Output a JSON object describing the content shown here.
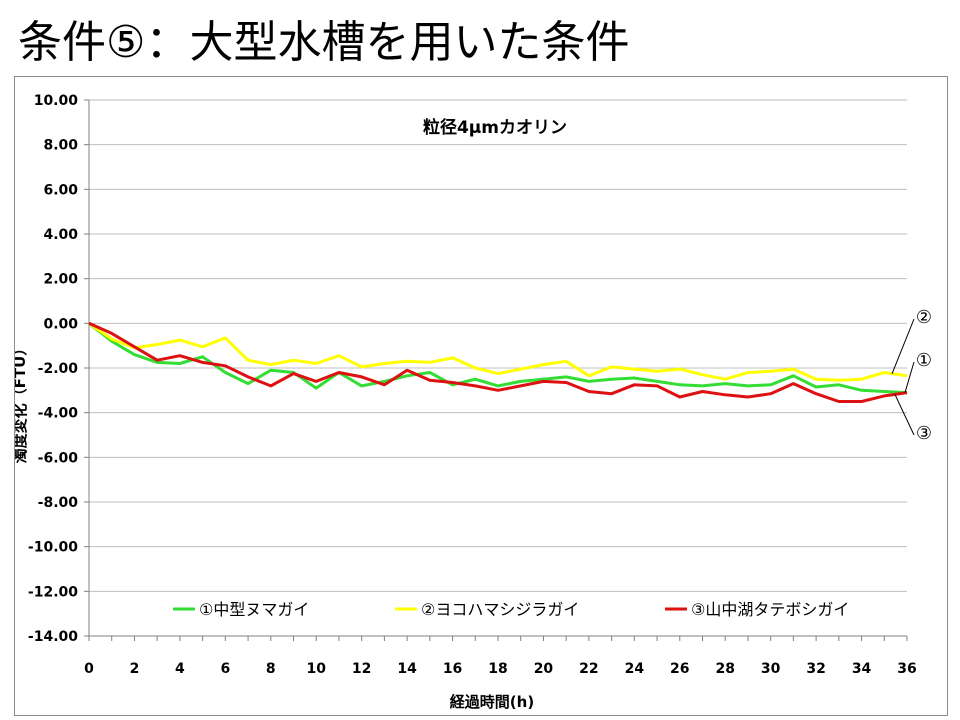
{
  "slide_title": "条件⑤：大型水槽を用いた条件",
  "chart_data": {
    "type": "line",
    "title": "粒径4μmカオリン",
    "xlabel": "経過時間(h)",
    "ylabel": "濁度変化（FTU）",
    "xlim": [
      0,
      36
    ],
    "ylim": [
      -14,
      10
    ],
    "x_ticks": [
      "0",
      "2",
      "4",
      "6",
      "8",
      "10",
      "12",
      "14",
      "16",
      "18",
      "20",
      "22",
      "24",
      "26",
      "28",
      "30",
      "32",
      "34",
      "36"
    ],
    "y_ticks": [
      "10.00",
      "8.00",
      "6.00",
      "4.00",
      "2.00",
      "0.00",
      "-2.00",
      "-4.00",
      "-6.00",
      "-8.00",
      "-10.00",
      "-12.00",
      "-14.00"
    ],
    "grid": "horizontal",
    "legend_position": "bottom",
    "x": [
      0,
      1,
      2,
      3,
      4,
      5,
      6,
      7,
      8,
      9,
      10,
      11,
      12,
      13,
      14,
      15,
      16,
      17,
      18,
      19,
      20,
      21,
      22,
      23,
      24,
      25,
      26,
      27,
      28,
      29,
      30,
      31,
      32,
      33,
      34,
      35,
      36
    ],
    "series": [
      {
        "name": "①中型ヌマガイ",
        "color": "#33dd33",
        "values": [
          0,
          -0.8,
          -1.4,
          -1.75,
          -1.8,
          -1.5,
          -2.2,
          -2.7,
          -2.1,
          -2.2,
          -2.9,
          -2.2,
          -2.8,
          -2.6,
          -2.35,
          -2.2,
          -2.75,
          -2.5,
          -2.8,
          -2.6,
          -2.5,
          -2.4,
          -2.6,
          -2.5,
          -2.45,
          -2.6,
          -2.75,
          -2.8,
          -2.7,
          -2.8,
          -2.75,
          -2.35,
          -2.85,
          -2.75,
          -3.0,
          -3.05,
          -3.1
        ]
      },
      {
        "name": "②ヨコハマシジラガイ",
        "color": "#ffff00",
        "values": [
          0,
          -0.7,
          -1.1,
          -0.95,
          -0.75,
          -1.05,
          -0.65,
          -1.65,
          -1.85,
          -1.65,
          -1.8,
          -1.45,
          -1.95,
          -1.8,
          -1.7,
          -1.75,
          -1.55,
          -2.0,
          -2.25,
          -2.05,
          -1.85,
          -1.7,
          -2.35,
          -1.95,
          -2.05,
          -2.15,
          -2.05,
          -2.3,
          -2.5,
          -2.2,
          -2.15,
          -2.05,
          -2.5,
          -2.55,
          -2.5,
          -2.2,
          -2.35
        ]
      },
      {
        "name": "③山中湖タテボシガイ",
        "color": "#dd1111",
        "values": [
          0,
          -0.45,
          -1.05,
          -1.65,
          -1.45,
          -1.75,
          -1.9,
          -2.4,
          -2.8,
          -2.25,
          -2.6,
          -2.2,
          -2.4,
          -2.75,
          -2.1,
          -2.55,
          -2.65,
          -2.8,
          -3.0,
          -2.8,
          -2.6,
          -2.65,
          -3.05,
          -3.15,
          -2.75,
          -2.8,
          -3.3,
          -3.05,
          -3.2,
          -3.3,
          -3.15,
          -2.7,
          -3.15,
          -3.5,
          -3.5,
          -3.25,
          -3.1
        ]
      }
    ],
    "callouts": [
      "②",
      "①",
      "③"
    ]
  }
}
